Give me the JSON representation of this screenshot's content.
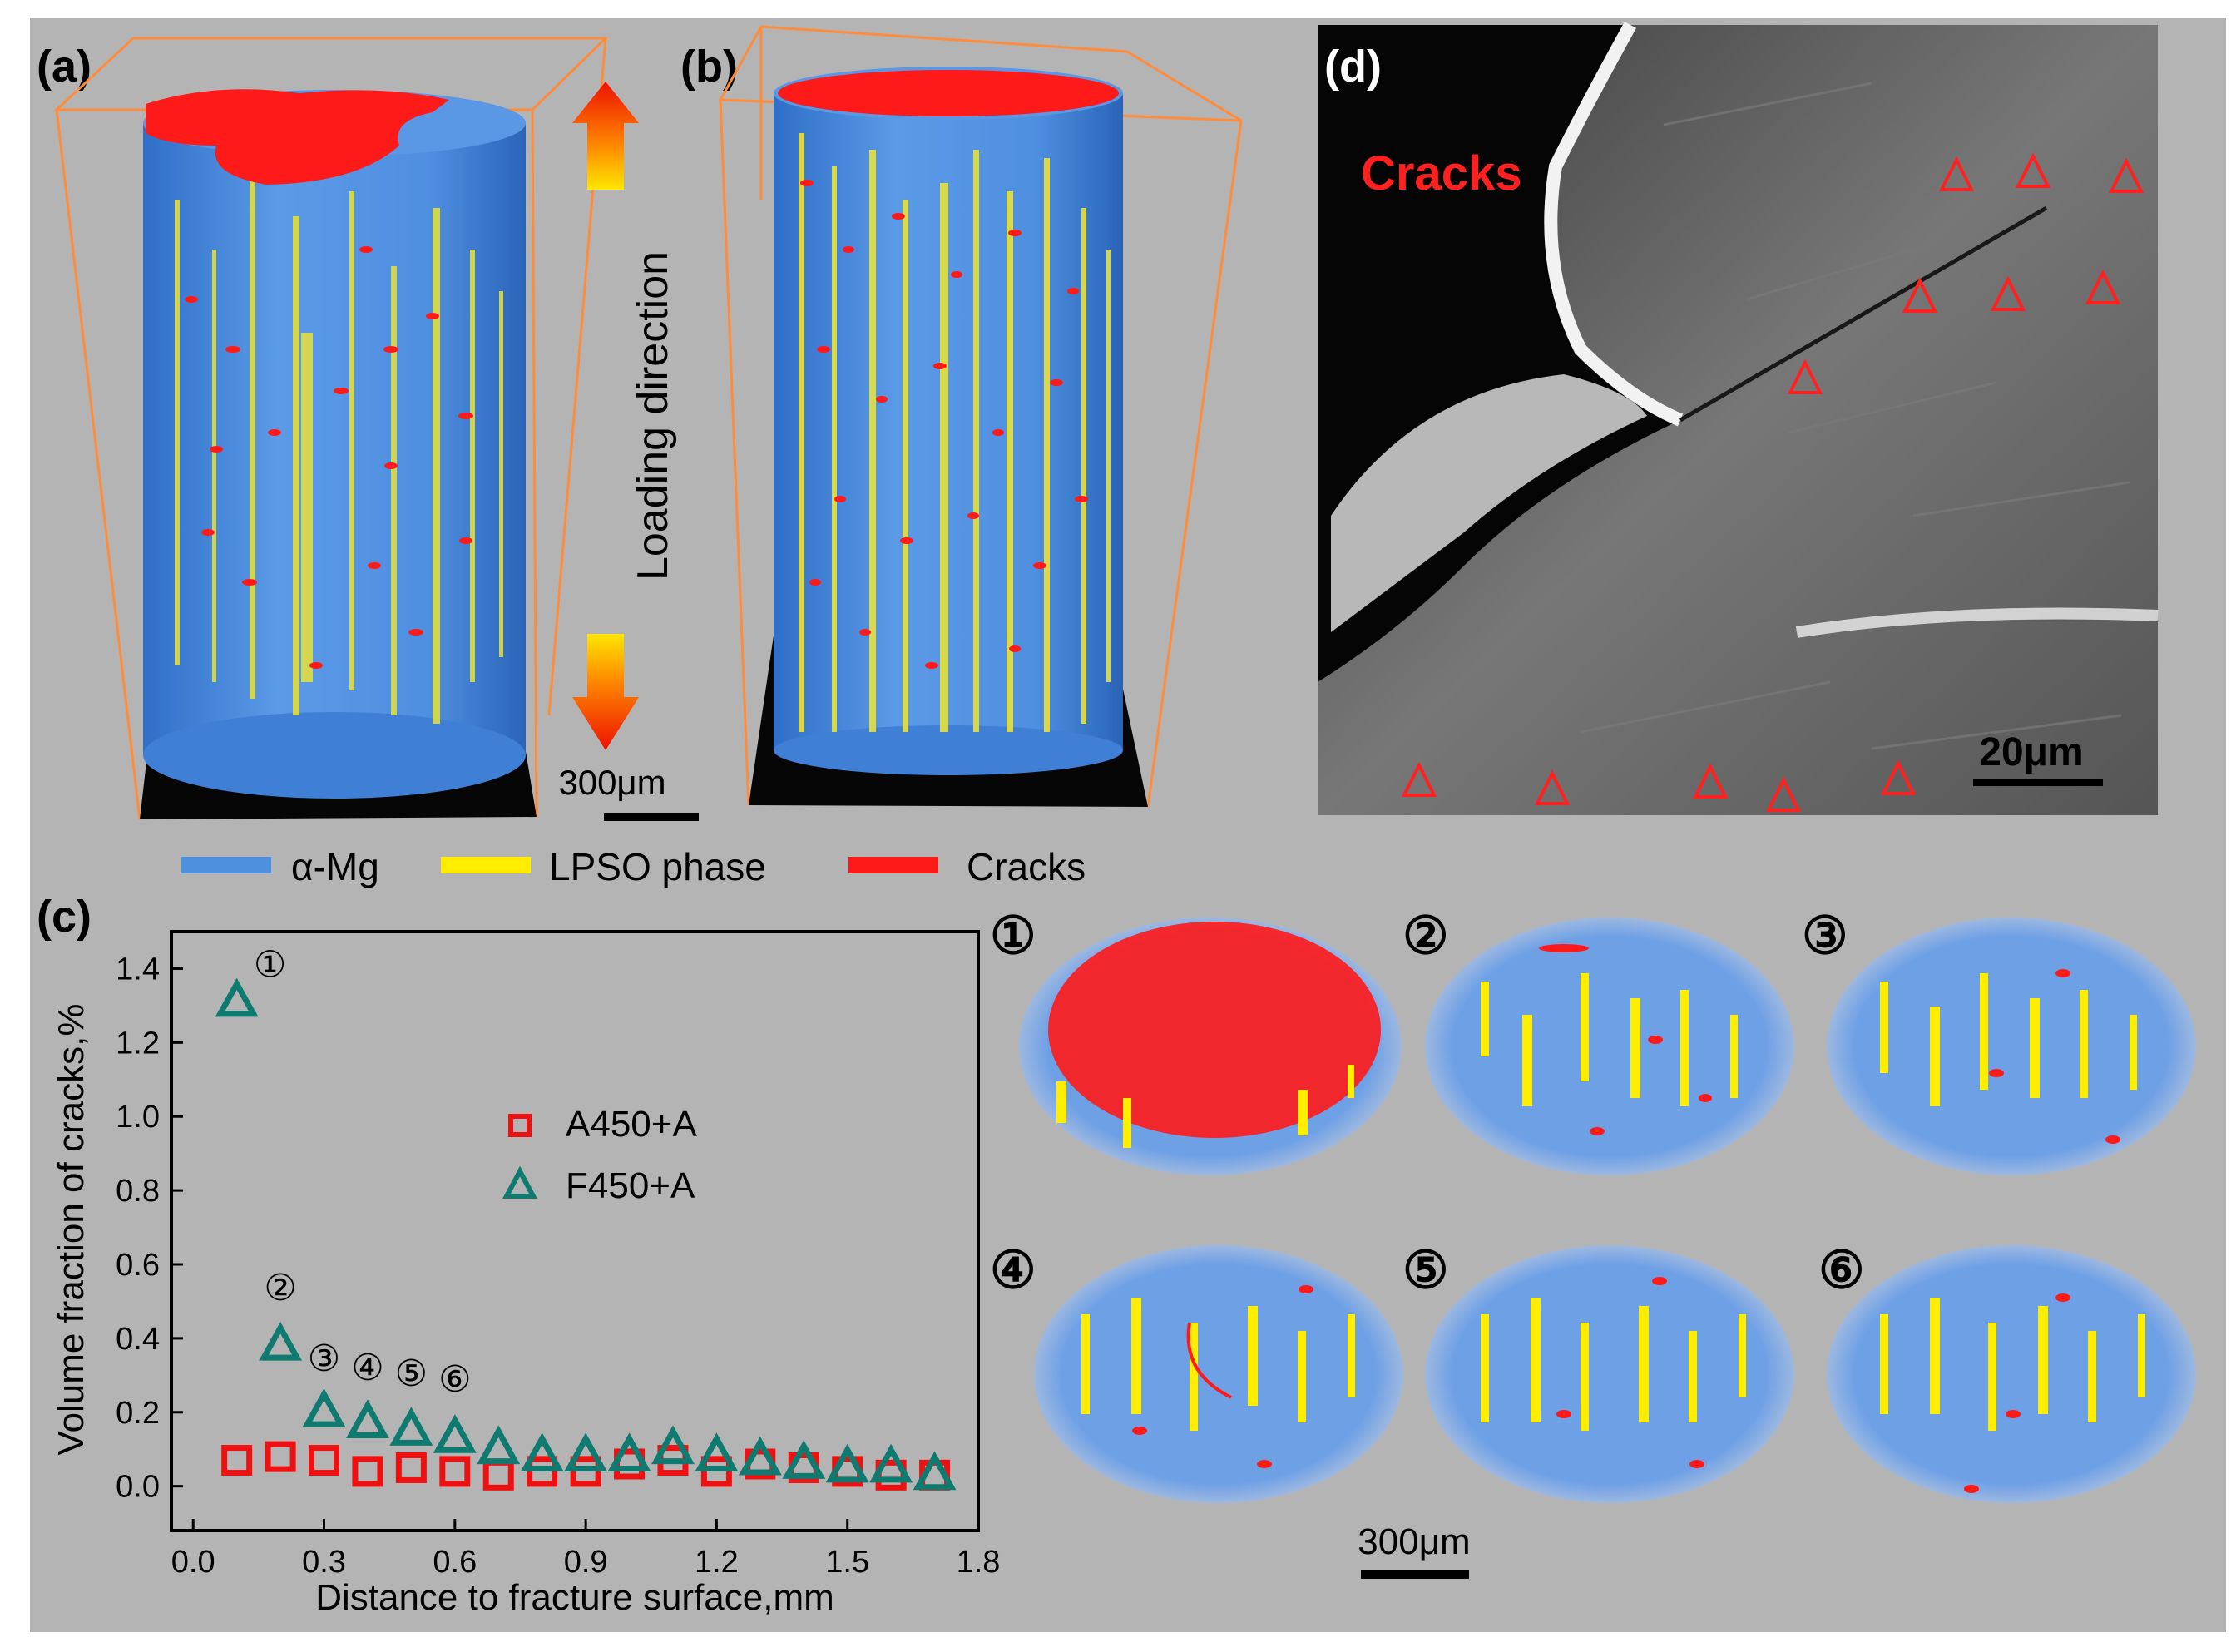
{
  "panel_labels": {
    "a": "(a)",
    "b": "(b)",
    "c": "(c)",
    "d": "(d)"
  },
  "top": {
    "loading_direction": "Loading direction",
    "scale_bar": "300μm",
    "legend": [
      {
        "label": "α-Mg",
        "color": "#4f8fe0"
      },
      {
        "label": "LPSO phase",
        "color": "#ffee00"
      },
      {
        "label": "Cracks",
        "color": "#ff1a1a"
      }
    ]
  },
  "sem": {
    "label": "Cracks",
    "scale_bar": "20μm"
  },
  "slices": {
    "labels": [
      "①",
      "②",
      "③",
      "④",
      "⑤",
      "⑥"
    ],
    "scale_bar": "300μm"
  },
  "colors": {
    "background": "#b4b4b4",
    "alpha_mg": "#4f8fe0",
    "lpso": "#ffee00",
    "cracks": "#ff1a1a",
    "series_a": "#ee1111",
    "series_f": "#0f7a70",
    "box_edges": "#ff8c3a"
  },
  "chart_data": {
    "type": "scatter",
    "xlabel": "Distance to fracture surface,mm",
    "ylabel": "Volume fraction of cracks,%",
    "xlim": [
      -0.05,
      1.8
    ],
    "ylim": [
      -0.12,
      1.5
    ],
    "xticks": [
      "0.0",
      "0.3",
      "0.6",
      "0.9",
      "1.2",
      "1.5",
      "1.8"
    ],
    "yticks": [
      "0.0",
      "0.2",
      "0.4",
      "0.6",
      "0.8",
      "1.0",
      "1.2",
      "1.4"
    ],
    "legend_position": "center-right",
    "series": [
      {
        "name": "A450+A",
        "marker": "square",
        "x": [
          0.1,
          0.2,
          0.3,
          0.4,
          0.5,
          0.6,
          0.7,
          0.8,
          0.9,
          1.0,
          1.1,
          1.2,
          1.3,
          1.4,
          1.5,
          1.6,
          1.7
        ],
        "y": [
          0.07,
          0.08,
          0.07,
          0.04,
          0.05,
          0.04,
          0.03,
          0.04,
          0.04,
          0.06,
          0.07,
          0.04,
          0.06,
          0.05,
          0.04,
          0.03,
          0.03
        ]
      },
      {
        "name": "F450+A",
        "marker": "triangle",
        "x": [
          0.1,
          0.2,
          0.3,
          0.4,
          0.5,
          0.6,
          0.7,
          0.8,
          0.9,
          1.0,
          1.1,
          1.2,
          1.3,
          1.4,
          1.5,
          1.6,
          1.7
        ],
        "y": [
          1.31,
          0.38,
          0.2,
          0.17,
          0.15,
          0.13,
          0.1,
          0.08,
          0.08,
          0.08,
          0.1,
          0.08,
          0.07,
          0.06,
          0.05,
          0.05,
          0.03
        ]
      }
    ],
    "annotations": [
      {
        "text": "①",
        "x": 0.1,
        "y": 1.31
      },
      {
        "text": "②",
        "x": 0.2,
        "y": 0.38
      },
      {
        "text": "③",
        "x": 0.3,
        "y": 0.2
      },
      {
        "text": "④",
        "x": 0.4,
        "y": 0.17
      },
      {
        "text": "⑤",
        "x": 0.5,
        "y": 0.15
      },
      {
        "text": "⑥",
        "x": 0.6,
        "y": 0.13
      }
    ]
  }
}
